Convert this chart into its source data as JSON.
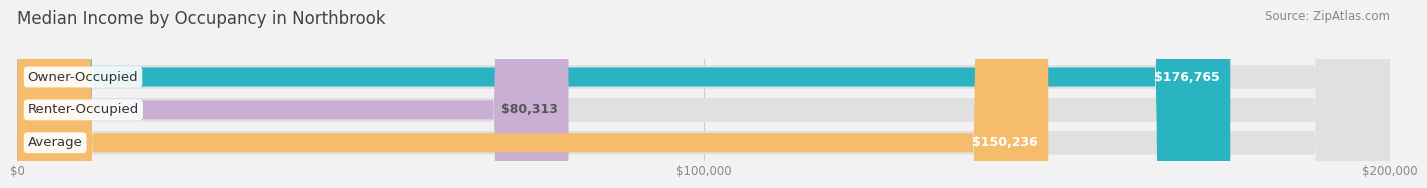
{
  "title": "Median Income by Occupancy in Northbrook",
  "source": "Source: ZipAtlas.com",
  "categories": [
    "Owner-Occupied",
    "Renter-Occupied",
    "Average"
  ],
  "values": [
    176765,
    80313,
    150236
  ],
  "bar_colors": [
    "#2ab3c0",
    "#c9afd4",
    "#f5bc6b"
  ],
  "label_colors": [
    "#ffffff",
    "#555555",
    "#ffffff"
  ],
  "value_labels": [
    "$176,765",
    "$80,313",
    "$150,236"
  ],
  "xlim": [
    0,
    200000
  ],
  "xtick_labels": [
    "$0",
    "$100,000",
    "$200,000"
  ],
  "background_color": "#f2f2f2",
  "bar_bg_color": "#e0e0e0",
  "title_fontsize": 12,
  "source_fontsize": 8.5,
  "label_fontsize": 9.5,
  "value_fontsize": 9
}
